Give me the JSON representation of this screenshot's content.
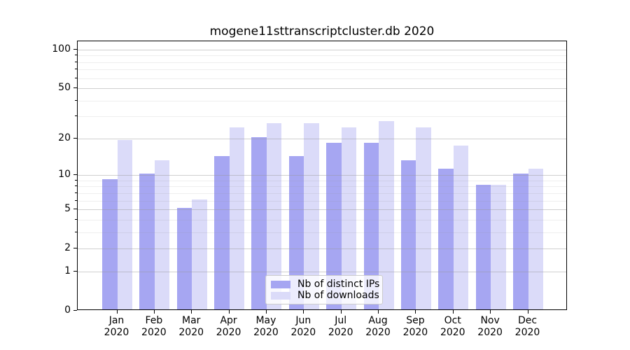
{
  "chart_data": {
    "type": "bar",
    "title": "mogene11sttranscriptcluster.db 2020",
    "categories": [
      "Jan",
      "Feb",
      "Mar",
      "Apr",
      "May",
      "Jun",
      "Jul",
      "Aug",
      "Sep",
      "Oct",
      "Nov",
      "Dec"
    ],
    "category_year": "2020",
    "series": [
      {
        "name": "Nb of distinct IPs",
        "color": "#a6a6f2",
        "values": [
          9,
          10,
          5,
          14,
          20,
          14,
          18,
          18,
          13,
          11,
          8,
          10
        ]
      },
      {
        "name": "Nb of downloads",
        "color": "#dbdbf9",
        "values": [
          19,
          13,
          6,
          24,
          26,
          26,
          24,
          27,
          24,
          17,
          8,
          11
        ]
      }
    ],
    "yscale": "log1p",
    "ylim": [
      0,
      116
    ],
    "yticks": [
      0,
      1,
      2,
      5,
      10,
      20,
      50,
      100
    ],
    "yticks_minor": [
      3,
      4,
      6,
      7,
      8,
      9,
      30,
      40,
      60,
      70,
      80,
      90
    ],
    "grid": true,
    "legend_position": "lower center",
    "xlabel": "",
    "ylabel": ""
  },
  "colors": {
    "major_grid": "rgba(150,150,150,0.45)",
    "minor_grid": "rgba(150,150,150,0.16)",
    "spine": "#000000",
    "legend_border": "#cccccc"
  }
}
